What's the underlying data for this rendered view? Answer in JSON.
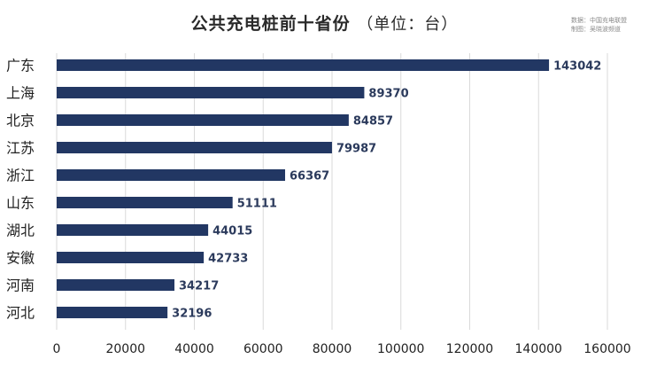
{
  "chart_data": {
    "type": "bar",
    "orientation": "horizontal",
    "title": "公共充电桩前十省份",
    "unit_label": "（单位：台）",
    "source_line": "数据：中国充电联盟",
    "credit_line": "制图：吴晓波频道",
    "categories": [
      "广东",
      "上海",
      "北京",
      "江苏",
      "浙江",
      "山东",
      "湖北",
      "安徽",
      "河南",
      "河北"
    ],
    "values": [
      143042,
      89370,
      84857,
      79987,
      66367,
      51111,
      44015,
      42733,
      34217,
      32196
    ],
    "value_labels": [
      "143042",
      "89370",
      "84857",
      "79987",
      "66367",
      "51111",
      "44015",
      "42733",
      "34217",
      "32196"
    ],
    "xlim": [
      0,
      160000
    ],
    "x_ticks": [
      0,
      20000,
      40000,
      60000,
      80000,
      100000,
      120000,
      140000,
      160000
    ],
    "x_tick_labels": [
      "0",
      "20000",
      "40000",
      "60000",
      "80000",
      "100000",
      "120000",
      "140000",
      "160000"
    ],
    "grid": "vertical",
    "colors": {
      "bar": "#223763",
      "grid": "#dadada",
      "text": "#222222",
      "value_text": "#2b3a5c"
    }
  }
}
